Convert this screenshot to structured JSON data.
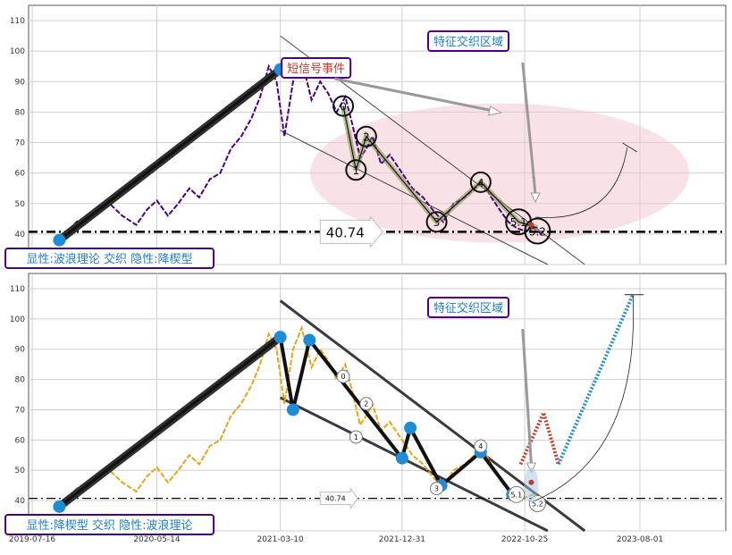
{
  "chart_data": [
    {
      "type": "line",
      "panel": "top",
      "ylim": [
        30,
        115
      ],
      "yticks": [
        30,
        40,
        50,
        60,
        70,
        80,
        90,
        100,
        110
      ],
      "grid": true,
      "series": [
        {
          "color": "#4b0082",
          "style": "dashed",
          "values": [
            [
              "2019-09-20",
              38
            ],
            [
              "2019-11-01",
              44
            ],
            [
              "2019-12-15",
              47
            ],
            [
              "2020-01-20",
              50
            ],
            [
              "2020-02-20",
              46
            ],
            [
              "2020-03-25",
              43
            ],
            [
              "2020-04-20",
              48
            ],
            [
              "2020-05-14",
              51
            ],
            [
              "2020-06-10",
              46
            ],
            [
              "2020-07-05",
              50
            ],
            [
              "2020-08-01",
              55
            ],
            [
              "2020-08-25",
              52
            ],
            [
              "2020-09-20",
              58
            ],
            [
              "2020-10-15",
              60
            ],
            [
              "2020-11-10",
              68
            ],
            [
              "2020-12-05",
              72
            ],
            [
              "2020-12-30",
              78
            ],
            [
              "2021-01-20",
              85
            ],
            [
              "2021-02-10",
              95
            ],
            [
              "2021-03-01",
              90
            ],
            [
              "2021-03-20",
              72
            ],
            [
              "2021-04-10",
              90
            ],
            [
              "2021-05-01",
              97
            ],
            [
              "2021-05-25",
              84
            ],
            [
              "2021-06-15",
              90
            ],
            [
              "2021-07-05",
              86
            ],
            [
              "2021-07-25",
              80
            ],
            [
              "2021-08-15",
              85
            ],
            [
              "2021-09-01",
              76
            ],
            [
              "2021-09-20",
              65
            ],
            [
              "2021-10-05",
              68
            ],
            [
              "2021-10-20",
              72
            ],
            [
              "2021-11-10",
              63
            ],
            [
              "2021-12-01",
              66
            ],
            [
              "2021-12-31",
              60
            ],
            [
              "2022-01-25",
              55
            ],
            [
              "2022-02-20",
              52
            ],
            [
              "2022-03-15",
              48
            ],
            [
              "2022-04-10",
              44
            ],
            [
              "2022-05-05",
              50
            ],
            [
              "2022-06-01",
              52
            ],
            [
              "2022-06-25",
              55
            ],
            [
              "2022-07-15",
              57
            ],
            [
              "2022-08-05",
              52
            ],
            [
              "2022-08-25",
              48
            ],
            [
              "2022-09-15",
              44
            ],
            [
              "2022-10-05",
              42
            ],
            [
              "2022-10-25",
              41
            ],
            [
              "2022-11-15",
              42
            ],
            [
              "2022-12-05",
              40
            ]
          ]
        },
        {
          "color": "#8b9a5b",
          "style": "solid",
          "values": [
            [
              "2021-08-10",
              82
            ],
            [
              "2021-09-10",
              61
            ],
            [
              "2021-10-05",
              72
            ],
            [
              "2022-03-25",
              44
            ],
            [
              "2022-07-10",
              57
            ],
            [
              "2022-10-10",
              44
            ],
            [
              "2022-11-25",
              42
            ]
          ]
        },
        {
          "color": "#2f2f2f",
          "style": "solid",
          "values": [
            [
              "2019-09-20",
              38
            ],
            [
              "2021-03-10",
              94
            ]
          ]
        }
      ],
      "markers": [
        {
          "x": "2019-09-20",
          "y": 38
        },
        {
          "x": "2021-03-10",
          "y": 94
        }
      ],
      "wave_labels": [
        {
          "text": "0",
          "x": "2021-08-10",
          "y": 82
        },
        {
          "text": "1",
          "x": "2021-09-10",
          "y": 61
        },
        {
          "text": "2",
          "x": "2021-10-05",
          "y": 72
        },
        {
          "text": "3",
          "x": "2022-03-25",
          "y": 44
        },
        {
          "text": "4",
          "x": "2022-07-10",
          "y": 57
        },
        {
          "text": "5.1",
          "x": "2022-10-10",
          "y": 44
        },
        {
          "text": "5.2",
          "x": "2022-11-25",
          "y": 41
        }
      ],
      "hline": 40.74,
      "hline_label": "40.74",
      "annotations": [
        {
          "text": "短信号事件"
        },
        {
          "text": "特征交织区域"
        },
        {
          "text": "显性:波浪理论 交织 隐性:降楔型"
        }
      ]
    },
    {
      "type": "line",
      "panel": "bottom",
      "ylim": [
        30,
        115
      ],
      "yticks": [
        30,
        40,
        50,
        60,
        70,
        80,
        90,
        100,
        110
      ],
      "grid": true,
      "xticks": [
        "2019-07-16",
        "2020-05-14",
        "2021-03-10",
        "2021-12-31",
        "2022-10-25",
        "2023-08-01"
      ],
      "series": [
        {
          "color": "#e8a317",
          "style": "dashed",
          "values": [
            [
              "2019-09-20",
              38
            ],
            [
              "2019-11-01",
              44
            ],
            [
              "2019-12-15",
              47
            ],
            [
              "2020-01-20",
              50
            ],
            [
              "2020-02-20",
              46
            ],
            [
              "2020-03-25",
              43
            ],
            [
              "2020-04-20",
              48
            ],
            [
              "2020-05-14",
              51
            ],
            [
              "2020-06-10",
              46
            ],
            [
              "2020-07-05",
              50
            ],
            [
              "2020-08-01",
              55
            ],
            [
              "2020-08-25",
              52
            ],
            [
              "2020-09-20",
              58
            ],
            [
              "2020-10-15",
              60
            ],
            [
              "2020-11-10",
              68
            ],
            [
              "2020-12-05",
              72
            ],
            [
              "2020-12-30",
              78
            ],
            [
              "2021-01-20",
              85
            ],
            [
              "2021-02-10",
              95
            ],
            [
              "2021-03-01",
              90
            ],
            [
              "2021-03-20",
              72
            ],
            [
              "2021-04-10",
              90
            ],
            [
              "2021-05-01",
              97
            ],
            [
              "2021-05-25",
              84
            ],
            [
              "2021-06-15",
              90
            ],
            [
              "2021-07-05",
              86
            ],
            [
              "2021-07-25",
              80
            ],
            [
              "2021-08-15",
              85
            ],
            [
              "2021-09-01",
              76
            ],
            [
              "2021-09-20",
              65
            ],
            [
              "2021-10-05",
              68
            ],
            [
              "2021-10-20",
              72
            ],
            [
              "2021-11-10",
              63
            ],
            [
              "2021-12-01",
              66
            ],
            [
              "2021-12-31",
              60
            ],
            [
              "2022-01-25",
              55
            ],
            [
              "2022-02-20",
              52
            ],
            [
              "2022-03-15",
              48
            ],
            [
              "2022-04-10",
              44
            ],
            [
              "2022-05-05",
              50
            ],
            [
              "2022-06-01",
              52
            ],
            [
              "2022-06-25",
              55
            ],
            [
              "2022-07-15",
              57
            ],
            [
              "2022-08-05",
              52
            ],
            [
              "2022-08-25",
              48
            ],
            [
              "2022-09-15",
              44
            ],
            [
              "2022-10-05",
              42
            ],
            [
              "2022-10-25",
              41
            ],
            [
              "2022-11-15",
              42
            ],
            [
              "2022-12-05",
              40
            ]
          ]
        },
        {
          "color": "#111111",
          "style": "solid",
          "values": [
            [
              "2021-03-10",
              94
            ],
            [
              "2021-04-10",
              70
            ],
            [
              "2021-05-20",
              93
            ],
            [
              "2021-12-31",
              54
            ],
            [
              "2022-01-20",
              64
            ],
            [
              "2022-04-05",
              45
            ],
            [
              "2022-07-10",
              56
            ],
            [
              "2022-09-25",
              42
            ]
          ]
        },
        {
          "color": "#2f2f2f",
          "style": "solid",
          "values": [
            [
              "2019-09-20",
              38
            ],
            [
              "2021-03-10",
              94
            ]
          ]
        },
        {
          "color": "#c0392b",
          "style": "dotted",
          "values": [
            [
              "2022-10-15",
              52
            ],
            [
              "2022-12-10",
              69
            ],
            [
              "2023-01-15",
              52
            ]
          ]
        },
        {
          "color": "#1f8dd6",
          "style": "dotted",
          "values": [
            [
              "2023-01-15",
              52
            ],
            [
              "2023-07-15",
              108
            ]
          ]
        }
      ],
      "markers": [
        {
          "x": "2019-09-20",
          "y": 38
        },
        {
          "x": "2021-03-10",
          "y": 94
        },
        {
          "x": "2021-04-10",
          "y": 70
        },
        {
          "x": "2021-05-20",
          "y": 93
        },
        {
          "x": "2021-12-31",
          "y": 54
        },
        {
          "x": "2022-01-20",
          "y": 64
        },
        {
          "x": "2022-04-05",
          "y": 45
        },
        {
          "x": "2022-07-10",
          "y": 56
        },
        {
          "x": "2022-09-25",
          "y": 42
        }
      ],
      "wave_labels": [
        {
          "text": "0",
          "x": "2021-08-10",
          "y": 81
        },
        {
          "text": "1",
          "x": "2021-09-10",
          "y": 61
        },
        {
          "text": "2",
          "x": "2021-10-05",
          "y": 72
        },
        {
          "text": "3",
          "x": "2022-03-25",
          "y": 44
        },
        {
          "text": "4",
          "x": "2022-07-10",
          "y": 58
        },
        {
          "text": "5.1",
          "x": "2022-10-05",
          "y": 42
        },
        {
          "text": "5.2",
          "x": "2022-11-25",
          "y": 39
        }
      ],
      "hline": 40.74,
      "hline_label": "40.74",
      "annotations": [
        {
          "text": "特征交织区域"
        },
        {
          "text": "显性:降楔型 交织 隐性:波浪理论"
        }
      ]
    }
  ],
  "colors": {
    "grid": "#cfcfcf",
    "annotation_border": "#4b0082",
    "annotation_text_blue": "#1f7fbf",
    "annotation_text_red": "#c0392b",
    "ellipse": "#f3c6cc",
    "marker": "#1f8dd6"
  }
}
